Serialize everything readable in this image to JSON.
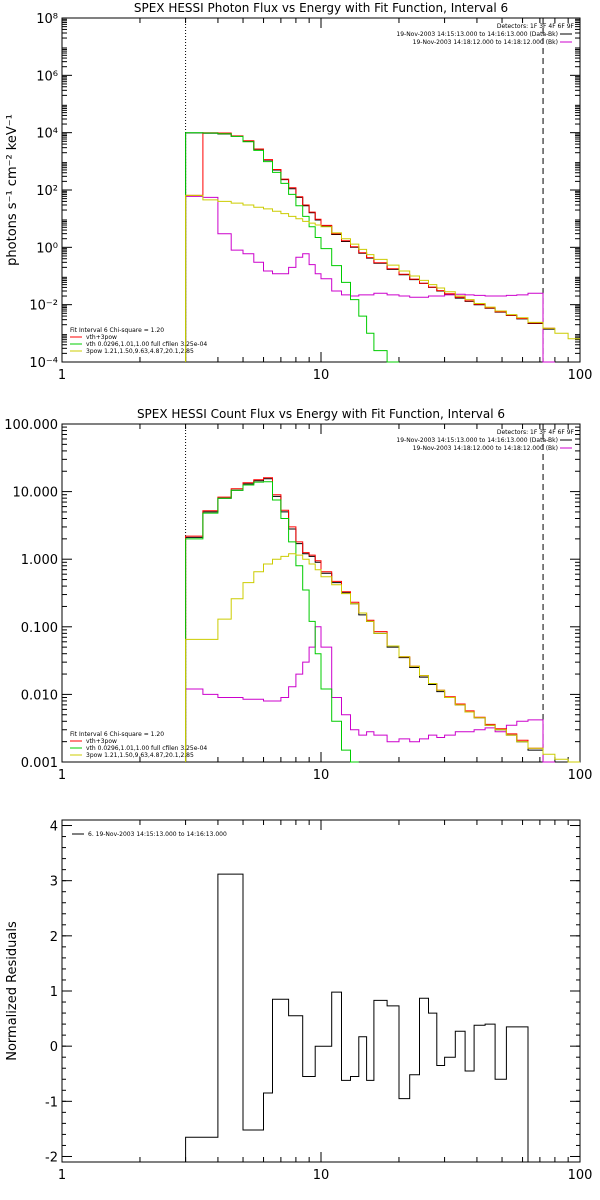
{
  "chart_data": [
    {
      "type": "line",
      "title": "SPEX HESSI Photon Flux vs Energy with Fit Function, Interval 6",
      "ylabel": "photons s⁻¹ cm⁻² keV⁻¹",
      "xlabel": "",
      "xscale": "log",
      "yscale": "log",
      "xlim": [
        1,
        100
      ],
      "ylim": [
        0.0001,
        100000000
      ],
      "xticks": [
        1,
        10,
        100
      ],
      "xtick_labels": [
        "1",
        "10",
        "100"
      ],
      "yticks": [
        0.0001,
        0.01,
        1,
        100,
        10000,
        1000000,
        100000000
      ],
      "ytick_labels": [
        "10⁻⁴",
        "10⁻²",
        "10⁰",
        "10²",
        "10⁴",
        "10⁶",
        "10⁸"
      ],
      "vlines": [
        {
          "x": 3,
          "style": "dotted"
        },
        {
          "x": 72,
          "style": "dashed"
        }
      ],
      "legend_top": {
        "header": "Detectors: 1F 3F 4F 6F 9F",
        "entries": [
          {
            "label": "19-Nov-2003 14:15:13.000 to 14:16:13.000 (Data-Bk)",
            "color": "#000000"
          },
          {
            "label": "19-Nov-2003 14:18:12.000 to 14:18:12.000 (Bk)",
            "color": "#cc00cc"
          }
        ]
      },
      "legend_bottom": {
        "header": "Fit Interval 6   Chi-square = 1.20",
        "entries": [
          {
            "label": "vth+3pow",
            "color": "#ff0000"
          },
          {
            "label": "vth 0.0296,1.01,1.00  full cfilen 3.25e-04",
            "color": "#00cc00"
          },
          {
            "label": "3pow 1.21,1.50,9.63,4.87,20.1,2.85",
            "color": "#cccc00"
          }
        ]
      },
      "edges": [
        3.0,
        3.5,
        4.0,
        4.5,
        5.0,
        5.5,
        6.0,
        6.5,
        7.0,
        7.5,
        8.0,
        8.5,
        9.0,
        9.5,
        10.0,
        11.0,
        12.0,
        13.0,
        14.0,
        15.0,
        16.0,
        18.0,
        20.0,
        22.0,
        24.0,
        26.0,
        28.0,
        30.0,
        33.0,
        36.0,
        39.0,
        43.0,
        47.0,
        52.0,
        57.0,
        63.0,
        72.0,
        80.0,
        90.0,
        100.0
      ],
      "series": [
        {
          "name": "Data-Bk",
          "color": "#000000",
          "values": [
            9800,
            9500,
            9000,
            7500,
            5000,
            2600,
            1100,
            500,
            230,
            110,
            55,
            28,
            16,
            9,
            5.5,
            2.8,
            1.6,
            1.0,
            0.62,
            0.42,
            0.28,
            0.17,
            0.11,
            0.075,
            0.055,
            0.04,
            0.03,
            0.023,
            0.017,
            0.013,
            0.01,
            0.0075,
            0.0055,
            0.0042,
            0.0032,
            0.0022,
            0.0014,
            null,
            null
          ]
        },
        {
          "name": "Bk",
          "color": "#cc00cc",
          "values": [
            60,
            55,
            3,
            0.8,
            0.6,
            0.3,
            0.15,
            0.12,
            0.12,
            0.2,
            0.45,
            0.6,
            0.25,
            0.12,
            0.08,
            0.03,
            0.022,
            0.02,
            0.022,
            0.022,
            0.025,
            0.022,
            0.02,
            0.018,
            0.018,
            0.02,
            0.02,
            0.022,
            0.023,
            0.022,
            0.021,
            0.02,
            0.02,
            0.021,
            0.022,
            0.025,
            0.0001,
            null,
            null
          ]
        },
        {
          "name": "vth+3pow",
          "color": "#ff0000",
          "values": [
            65,
            10000,
            9700,
            7700,
            5200,
            2700,
            1150,
            520,
            240,
            120,
            58,
            30,
            17,
            9.5,
            5.8,
            3.0,
            1.7,
            1.05,
            0.65,
            0.44,
            0.29,
            0.18,
            0.115,
            0.078,
            0.056,
            0.041,
            0.031,
            0.024,
            0.018,
            0.0135,
            0.0103,
            0.0077,
            0.0057,
            0.0043,
            0.0033,
            0.0023,
            0.0015,
            null,
            null
          ]
        },
        {
          "name": "vth",
          "color": "#00cc00",
          "values": [
            10000,
            9700,
            9100,
            7400,
            4800,
            2400,
            980,
            410,
            170,
            70,
            28,
            12,
            5.2,
            2.2,
            0.9,
            0.23,
            0.06,
            0.015,
            0.004,
            0.001,
            0.00025,
            5e-05,
            null,
            null,
            null,
            null,
            null,
            null,
            null,
            null,
            null,
            null,
            null,
            null,
            null,
            null,
            null,
            null,
            null
          ]
        },
        {
          "name": "3pow",
          "color": "#cccc00",
          "values": [
            65,
            45,
            40,
            35,
            30,
            25,
            22,
            18,
            15,
            12,
            10,
            8,
            7,
            6,
            5.2,
            3.2,
            2.0,
            1.3,
            0.85,
            0.56,
            0.38,
            0.24,
            0.15,
            0.1,
            0.07,
            0.05,
            0.038,
            0.028,
            0.02,
            0.015,
            0.011,
            0.0082,
            0.006,
            0.0045,
            0.0035,
            0.0024,
            0.0015,
            0.001,
            0.00065
          ]
        }
      ]
    },
    {
      "type": "line",
      "title": "SPEX HESSI Count Flux vs Energy with Fit Function, Interval 6",
      "xlabel": "",
      "ylabel": "",
      "xscale": "log",
      "yscale": "log",
      "xlim": [
        1,
        100
      ],
      "ylim": [
        0.001,
        100
      ],
      "xticks": [
        1,
        10,
        100
      ],
      "xtick_labels": [
        "1",
        "10",
        "100"
      ],
      "yticks": [
        0.001,
        0.01,
        0.1,
        1,
        10,
        100
      ],
      "ytick_labels": [
        "0.001",
        "0.010",
        "0.100",
        "1.000",
        "10.000",
        "100.000"
      ],
      "vlines": [
        {
          "x": 3,
          "style": "dotted"
        },
        {
          "x": 72,
          "style": "dashed"
        }
      ],
      "legend_top": {
        "header": "Detectors: 1F 3F 4F 6F 9F",
        "entries": [
          {
            "label": "19-Nov-2003 14:15:13.000 to 14:16:13.000 (Data-Bk)",
            "color": "#000000"
          },
          {
            "label": "19-Nov-2003 14:18:12.000 to 14:18:12.000 (Bk)",
            "color": "#cc00cc"
          }
        ]
      },
      "legend_bottom": {
        "header": "Fit Interval 6   Chi-square = 1.20",
        "entries": [
          {
            "label": "vth+3pow",
            "color": "#ff0000"
          },
          {
            "label": "vth 0.0296,1.01,1.00  full cfilen 3.25e-04",
            "color": "#00cc00"
          },
          {
            "label": "3pow 1.21,1.50,9.63,4.87,20.1,2.85",
            "color": "#cccc00"
          }
        ]
      },
      "edges": [
        3.0,
        3.5,
        4.0,
        4.5,
        5.0,
        5.5,
        6.0,
        6.5,
        7.0,
        7.5,
        8.0,
        8.5,
        9.0,
        9.5,
        10.0,
        11.0,
        12.0,
        13.0,
        14.0,
        15.0,
        16.0,
        18.0,
        20.0,
        22.0,
        24.0,
        26.0,
        28.0,
        30.0,
        33.0,
        36.0,
        39.0,
        43.0,
        47.0,
        52.0,
        57.0,
        63.0,
        72.0,
        80.0,
        90.0,
        100.0
      ],
      "series": [
        {
          "name": "Data-Bk",
          "color": "#000000",
          "values": [
            2.1,
            5.0,
            8.0,
            10.5,
            13.0,
            14.5,
            15.5,
            8.5,
            5.0,
            2.8,
            1.7,
            1.2,
            1.1,
            0.9,
            0.62,
            0.45,
            0.32,
            0.22,
            0.15,
            0.12,
            0.08,
            0.05,
            0.035,
            0.025,
            0.018,
            0.014,
            0.011,
            0.009,
            0.007,
            0.0055,
            0.0045,
            0.0035,
            0.003,
            0.0025,
            0.002,
            0.0015,
            null,
            null,
            null
          ]
        },
        {
          "name": "Bk",
          "color": "#cc00cc",
          "values": [
            0.012,
            0.01,
            0.009,
            0.009,
            0.0085,
            0.0085,
            0.008,
            0.008,
            0.009,
            0.013,
            0.02,
            0.03,
            0.05,
            0.1,
            0.05,
            0.009,
            0.005,
            0.003,
            0.0025,
            0.0028,
            0.0025,
            0.002,
            0.0022,
            0.002,
            0.0022,
            0.0025,
            0.0023,
            0.0025,
            0.0028,
            0.0028,
            0.003,
            0.0032,
            0.0028,
            0.0035,
            0.004,
            0.0042,
            0.0001,
            null,
            null
          ]
        },
        {
          "name": "vth+3pow",
          "color": "#ff0000",
          "values": [
            2.2,
            5.2,
            8.3,
            11,
            13.5,
            15,
            16,
            9,
            5.3,
            3.0,
            1.8,
            1.25,
            1.15,
            0.95,
            0.65,
            0.47,
            0.33,
            0.23,
            0.16,
            0.125,
            0.085,
            0.052,
            0.036,
            0.026,
            0.019,
            0.0145,
            0.0115,
            0.0092,
            0.0072,
            0.0057,
            0.0046,
            0.0036,
            0.0031,
            0.0026,
            0.0021,
            0.0016,
            null,
            null,
            null
          ]
        },
        {
          "name": "vth",
          "color": "#00cc00",
          "values": [
            2.0,
            4.8,
            8.0,
            10.5,
            12.5,
            13.8,
            14.0,
            7.5,
            4.0,
            1.8,
            0.8,
            0.35,
            0.12,
            0.04,
            0.012,
            0.004,
            0.0015,
            0.0005,
            null,
            null,
            null,
            null,
            null,
            null,
            null,
            null,
            null,
            null,
            null,
            null,
            null,
            null,
            null,
            null,
            null,
            null,
            null,
            null,
            null
          ]
        },
        {
          "name": "3pow",
          "color": "#cccc00",
          "values": [
            0.065,
            0.065,
            0.13,
            0.26,
            0.45,
            0.65,
            0.85,
            1.0,
            1.1,
            1.2,
            1.15,
            1.0,
            0.85,
            0.7,
            0.55,
            0.42,
            0.31,
            0.22,
            0.16,
            0.12,
            0.08,
            0.052,
            0.036,
            0.026,
            0.019,
            0.0145,
            0.0115,
            0.009,
            0.007,
            0.0055,
            0.0045,
            0.0035,
            0.003,
            0.0025,
            0.002,
            0.0016,
            0.0013,
            0.0011,
            0.001
          ]
        }
      ]
    },
    {
      "type": "line",
      "title": "",
      "xlabel": "",
      "ylabel": "Normalized Residuals",
      "xscale": "log",
      "yscale": "linear",
      "xlim": [
        1,
        100
      ],
      "ylim": [
        -2.1,
        4.1
      ],
      "xticks": [
        1,
        10,
        100
      ],
      "xtick_labels": [
        "1",
        "10",
        "100"
      ],
      "yticks": [
        -2,
        -1,
        0,
        1,
        2,
        3,
        4
      ],
      "ytick_labels": [
        "-2",
        "-1",
        "0",
        "1",
        "2",
        "3",
        "4"
      ],
      "legend_top": {
        "header": "",
        "entries": [
          {
            "label": "6. 19-Nov-2003 14:15:13.000 to 14:16:13.000",
            "color": "#000000"
          }
        ]
      },
      "edges": [
        3.0,
        3.5,
        4.0,
        4.5,
        5.0,
        5.5,
        6.0,
        6.5,
        7.0,
        7.5,
        8.0,
        8.5,
        9.0,
        9.5,
        10.0,
        11.0,
        12.0,
        13.0,
        14.0,
        15.0,
        16.0,
        18.0,
        20.0,
        22.0,
        24.0,
        26.0,
        28.0,
        30.0,
        33.0,
        36.0,
        39.0,
        43.0,
        47.0,
        52.0,
        57.0,
        63.0,
        72.0
      ],
      "series": [
        {
          "name": "Residuals",
          "color": "#000000",
          "values": [
            -1.65,
            -1.65,
            3.12,
            3.12,
            -1.52,
            -1.52,
            -0.85,
            0.85,
            0.85,
            0.55,
            0.55,
            -0.55,
            -0.55,
            0.0,
            0.0,
            0.98,
            -0.62,
            -0.55,
            0.17,
            -0.62,
            0.83,
            0.73,
            -0.95,
            -0.52,
            0.87,
            0.6,
            -0.35,
            -0.2,
            0.27,
            -0.45,
            0.38,
            0.4,
            -0.6,
            0.35,
            0.35,
            -2.1
          ]
        }
      ]
    }
  ]
}
